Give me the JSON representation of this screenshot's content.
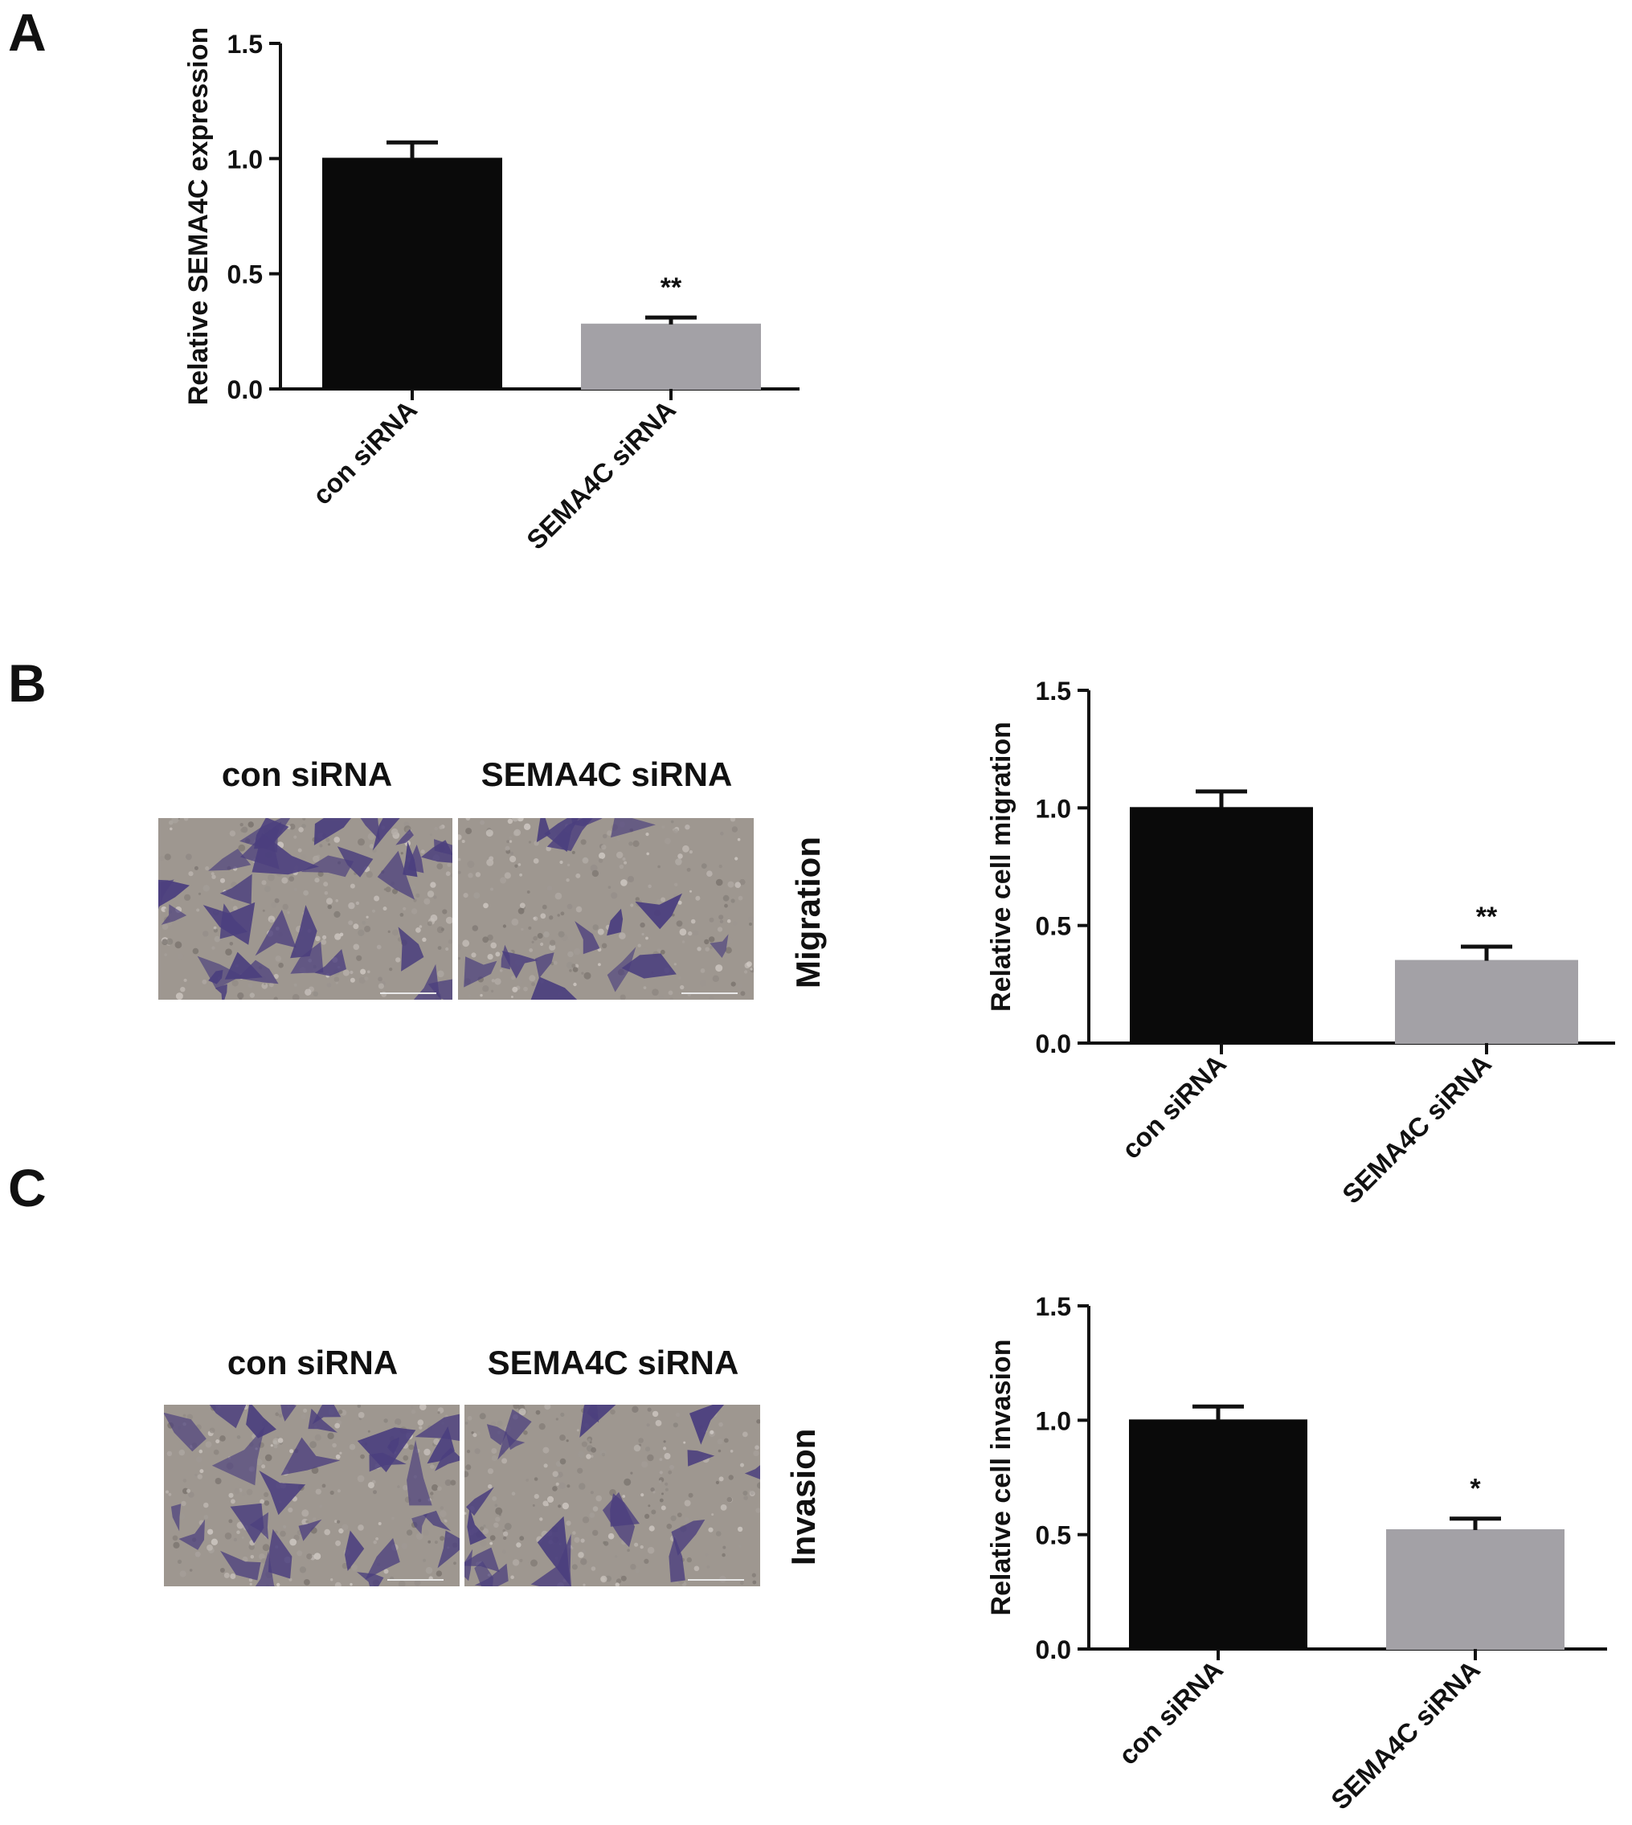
{
  "panels": {
    "a": {
      "letter": "A"
    },
    "b": {
      "letter": "B",
      "image_labels": [
        "con siRNA",
        "SEMA4C siRNA"
      ],
      "side_label": "Migration"
    },
    "c": {
      "letter": "C",
      "image_labels": [
        "con siRNA",
        "SEMA4C siRNA"
      ],
      "side_label": "Invasion"
    }
  },
  "colors": {
    "con_bar": "#0a0a0a",
    "sema_bar": "#a3a1a6",
    "axis": "#111111",
    "stain": "#4b3f7e"
  },
  "chart_data": [
    {
      "type": "bar",
      "categories": [
        "con siRNA",
        "SEMA4C siRNA"
      ],
      "values": [
        1.0,
        0.28
      ],
      "errors": [
        0.07,
        0.03
      ],
      "annotations": [
        "",
        "**"
      ],
      "ylabel": "Relative SEMA4C expression",
      "ylim": [
        0,
        1.5
      ],
      "yticks": [
        "0.0",
        "0.5",
        "1.0",
        "1.5"
      ]
    },
    {
      "type": "bar",
      "categories": [
        "con siRNA",
        "SEMA4C siRNA"
      ],
      "values": [
        1.0,
        0.35
      ],
      "errors": [
        0.07,
        0.06
      ],
      "annotations": [
        "",
        "**"
      ],
      "ylabel": "Relative cell migration",
      "ylim": [
        0,
        1.5
      ],
      "yticks": [
        "0.0",
        "0.5",
        "1.0",
        "1.5"
      ]
    },
    {
      "type": "bar",
      "categories": [
        "con siRNA",
        "SEMA4C siRNA"
      ],
      "values": [
        1.0,
        0.52
      ],
      "errors": [
        0.06,
        0.05
      ],
      "annotations": [
        "",
        "*"
      ],
      "ylabel": "Relative cell invasion",
      "ylim": [
        0,
        1.5
      ],
      "yticks": [
        "0.0",
        "0.5",
        "1.0",
        "1.5"
      ]
    }
  ]
}
